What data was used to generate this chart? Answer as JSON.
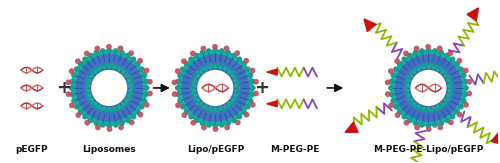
{
  "background_color": "#ffffff",
  "labels": [
    "pEGFP",
    "Liposomes",
    "Lipo/pEGFP",
    "M-PEG-PE",
    "M-PEG-PE-Lipo/pEGFP"
  ],
  "label_fontsize": 6.5,
  "colors": {
    "teal_outer": "#18b0a0",
    "teal_head": "#15a090",
    "blue_inner": "#4070c0",
    "blue_dark": "#2a50a0",
    "white": "#ffffff",
    "pink_dot": "#c05060",
    "arrow_color": "#111111",
    "plus_color": "#333333",
    "peg_green": "#90b800",
    "peg_purple": "#8844bb",
    "mannose_red": "#cc1111",
    "dna_red": "#b83030",
    "dna_pink": "#cc7070"
  },
  "figsize": [
    5.0,
    1.63
  ],
  "dpi": 100
}
